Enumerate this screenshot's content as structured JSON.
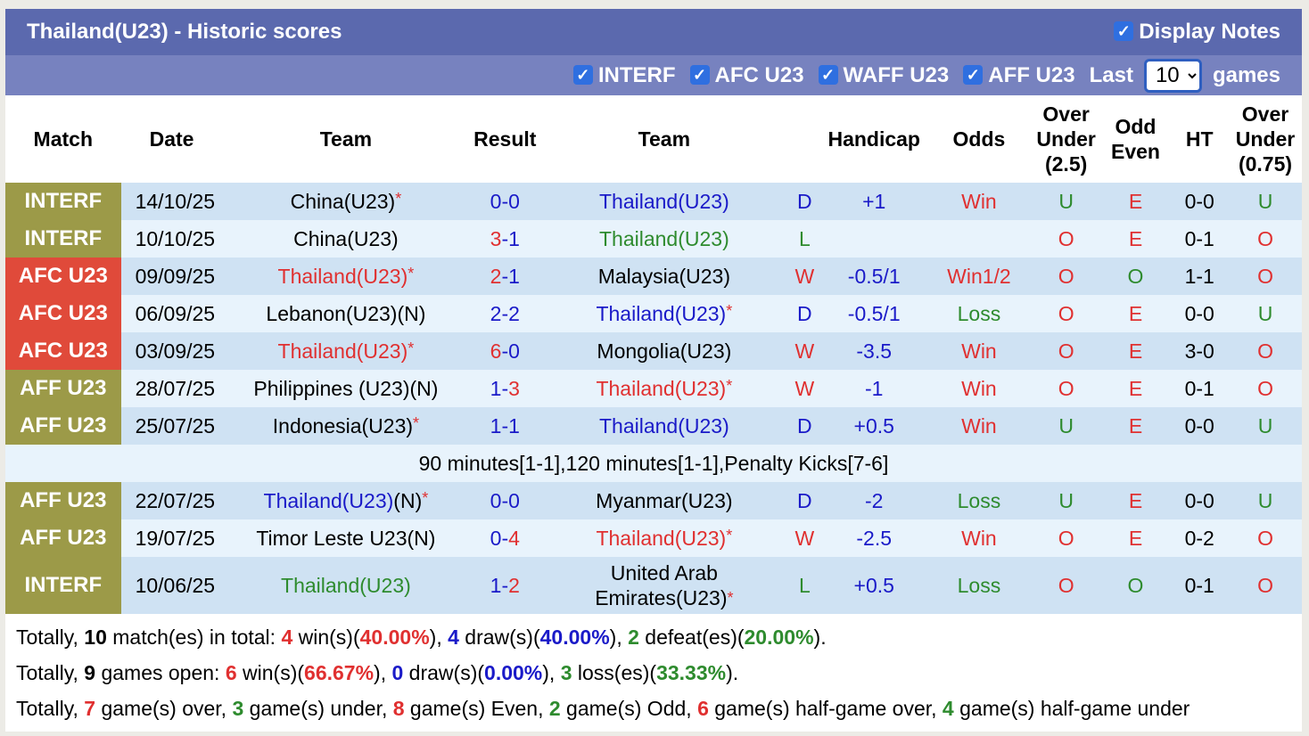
{
  "title": "Thailand(U23) - Historic scores",
  "display_notes": "Display Notes",
  "filters": [
    "INTERF",
    "AFC U23",
    "WAFF U23",
    "AFF U23"
  ],
  "last_label": "Last",
  "last_value": "10",
  "games_label": "games",
  "colors": {
    "INTERF": "#9c9a48",
    "AFF U23": "#9c9a48",
    "AFC U23": "#e04a3a",
    "header": "#5b69ae",
    "subheader": "#7782bf"
  },
  "headers": [
    "Match",
    "Date",
    "Team",
    "Result",
    "Team",
    "",
    "Handicap",
    "Odds",
    "Over Under (2.5)",
    "Odd Even",
    "HT",
    "Over Under (0.75)"
  ],
  "rows": [
    {
      "match": "INTERF",
      "date": "14/10/25",
      "home": "China(U23)",
      "home_star": true,
      "away": "Thailand(U23)",
      "away_star": false,
      "score": [
        0,
        0
      ],
      "res": "D",
      "hc": "+1",
      "odds": "Win",
      "ou": "U",
      "oe": "E",
      "ht": "0-0",
      "ou2": "U",
      "thai": "away"
    },
    {
      "match": "INTERF",
      "date": "10/10/25",
      "home": "China(U23)",
      "home_star": false,
      "away": "Thailand(U23)",
      "away_star": false,
      "score": [
        3,
        1
      ],
      "res": "L",
      "hc": "",
      "odds": "",
      "ou": "O",
      "oe": "E",
      "ht": "0-1",
      "ou2": "O",
      "thai": "away"
    },
    {
      "match": "AFC U23",
      "date": "09/09/25",
      "home": "Thailand(U23)",
      "home_star": true,
      "away": "Malaysia(U23)",
      "away_star": false,
      "score": [
        2,
        1
      ],
      "res": "W",
      "hc": "-0.5/1",
      "odds": "Win1/2",
      "ou": "O",
      "oe": "O",
      "ht": "1-1",
      "ou2": "O",
      "thai": "home"
    },
    {
      "match": "AFC U23",
      "date": "06/09/25",
      "home": "Lebanon(U23)(N)",
      "home_star": false,
      "away": "Thailand(U23)",
      "away_star": true,
      "score": [
        2,
        2
      ],
      "res": "D",
      "hc": "-0.5/1",
      "odds": "Loss",
      "ou": "O",
      "oe": "E",
      "ht": "0-0",
      "ou2": "U",
      "thai": "away"
    },
    {
      "match": "AFC U23",
      "date": "03/09/25",
      "home": "Thailand(U23)",
      "home_star": true,
      "away": "Mongolia(U23)",
      "away_star": false,
      "score": [
        6,
        0
      ],
      "res": "W",
      "hc": "-3.5",
      "odds": "Win",
      "ou": "O",
      "oe": "E",
      "ht": "3-0",
      "ou2": "O",
      "thai": "home"
    },
    {
      "match": "AFF U23",
      "date": "28/07/25",
      "home": "Philippines (U23)(N)",
      "home_star": false,
      "away": "Thailand(U23)",
      "away_star": true,
      "score": [
        1,
        3
      ],
      "res": "W",
      "hc": "-1",
      "odds": "Win",
      "ou": "O",
      "oe": "E",
      "ht": "0-1",
      "ou2": "O",
      "thai": "away"
    },
    {
      "match": "AFF U23",
      "date": "25/07/25",
      "home": "Indonesia(U23)",
      "home_star": true,
      "away": "Thailand(U23)",
      "away_star": false,
      "score": [
        1,
        1
      ],
      "res": "D",
      "hc": "+0.5",
      "odds": "Win",
      "ou": "U",
      "oe": "E",
      "ht": "0-0",
      "ou2": "U",
      "thai": "away",
      "note": "90 minutes[1-1],120 minutes[1-1],Penalty Kicks[7-6]"
    },
    {
      "match": "AFF U23",
      "date": "22/07/25",
      "home": "Thailand(U23)",
      "home_suffix": "(N)",
      "home_star": true,
      "away": "Myanmar(U23)",
      "away_star": false,
      "score": [
        0,
        0
      ],
      "res": "D",
      "hc": "-2",
      "odds": "Loss",
      "ou": "U",
      "oe": "E",
      "ht": "0-0",
      "ou2": "U",
      "thai": "home"
    },
    {
      "match": "AFF U23",
      "date": "19/07/25",
      "home": "Timor Leste U23(N)",
      "home_star": false,
      "away": "Thailand(U23)",
      "away_star": true,
      "score": [
        0,
        4
      ],
      "res": "W",
      "hc": "-2.5",
      "odds": "Win",
      "ou": "O",
      "oe": "E",
      "ht": "0-2",
      "ou2": "O",
      "thai": "away"
    },
    {
      "match": "INTERF",
      "date": "10/06/25",
      "home": "Thailand(U23)",
      "home_star": false,
      "away": "United Arab Emirates(U23)",
      "away_star": true,
      "score": [
        1,
        2
      ],
      "res": "L",
      "hc": "+0.5",
      "odds": "Loss",
      "ou": "O",
      "oe": "O",
      "ht": "0-1",
      "ou2": "O",
      "thai": "home"
    }
  ],
  "summary": [
    [
      [
        "Totally, ",
        "k"
      ],
      [
        "10",
        "kb"
      ],
      [
        " match(es) in total: ",
        "k"
      ],
      [
        "4",
        "rb"
      ],
      [
        " win(s)(",
        "k"
      ],
      [
        "40.00%",
        "rb"
      ],
      [
        "), ",
        "k"
      ],
      [
        "4",
        "blb"
      ],
      [
        " draw(s)(",
        "k"
      ],
      [
        "40.00%",
        "blb"
      ],
      [
        "), ",
        "k"
      ],
      [
        "2",
        "gb"
      ],
      [
        " defeat(es)(",
        "k"
      ],
      [
        "20.00%",
        "gb"
      ],
      [
        ").",
        "k"
      ]
    ],
    [
      [
        "Totally, ",
        "k"
      ],
      [
        "9",
        "kb"
      ],
      [
        " games open: ",
        "k"
      ],
      [
        "6",
        "rb"
      ],
      [
        " win(s)(",
        "k"
      ],
      [
        "66.67%",
        "rb"
      ],
      [
        "), ",
        "k"
      ],
      [
        "0",
        "blb"
      ],
      [
        " draw(s)(",
        "k"
      ],
      [
        "0.00%",
        "blb"
      ],
      [
        "), ",
        "k"
      ],
      [
        "3",
        "gb"
      ],
      [
        " loss(es)(",
        "k"
      ],
      [
        "33.33%",
        "gb"
      ],
      [
        ").",
        "k"
      ]
    ],
    [
      [
        "Totally, ",
        "k"
      ],
      [
        "7",
        "rb"
      ],
      [
        " game(s) over, ",
        "k"
      ],
      [
        "3",
        "gb"
      ],
      [
        " game(s) under, ",
        "k"
      ],
      [
        "8",
        "rb"
      ],
      [
        " game(s) Even, ",
        "k"
      ],
      [
        "2",
        "gb"
      ],
      [
        " game(s) Odd, ",
        "k"
      ],
      [
        "6",
        "rb"
      ],
      [
        " game(s) half-game over, ",
        "k"
      ],
      [
        "4",
        "gb"
      ],
      [
        " game(s) half-game under",
        "k"
      ]
    ]
  ]
}
